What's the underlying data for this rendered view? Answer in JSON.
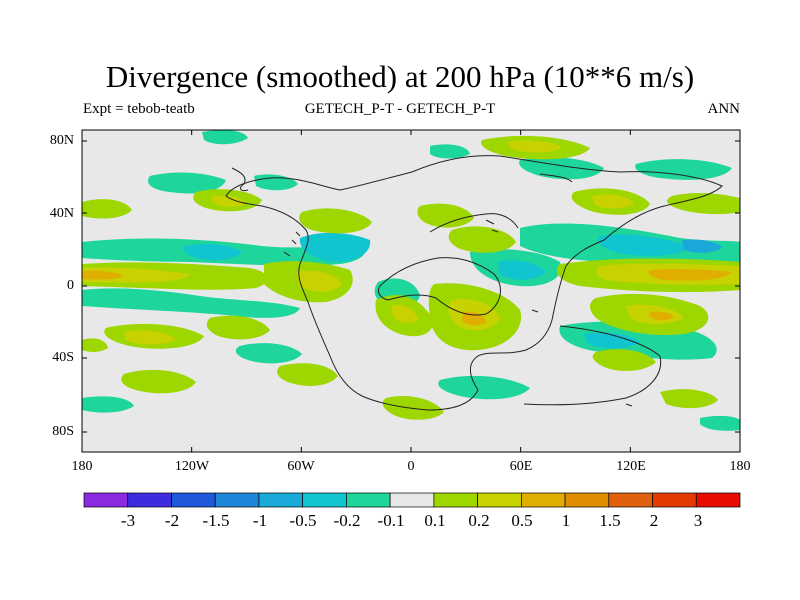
{
  "header": {
    "title": "Divergence (smoothed) at 200 hPa (10**6 m/s)",
    "left": "Expt = tebob-teatb",
    "center": "GETECH_P-T - GETECH_P-T",
    "right": "ANN"
  },
  "axes": {
    "y_ticks": [
      "80N",
      "40N",
      "0",
      "40S",
      "80S"
    ],
    "x_ticks": [
      "180",
      "120W",
      "60W",
      "0",
      "60E",
      "120E",
      "180"
    ]
  },
  "colorbar": {
    "labels": [
      "-3",
      "-2",
      "-1.5",
      "-1",
      "-0.5",
      "-0.2",
      "-0.1",
      "0.1",
      "0.2",
      "0.5",
      "1",
      "1.5",
      "2",
      "3"
    ],
    "colors": [
      "#8a2be2",
      "#3d2be0",
      "#1f58d8",
      "#1c86d8",
      "#1aa8d8",
      "#10c4d0",
      "#1ed69c",
      "#e8e8e8",
      "#9ed600",
      "#c8d200",
      "#e0ae00",
      "#e28c00",
      "#e06010",
      "#e43a00",
      "#e80c00"
    ]
  },
  "map": {
    "background": "#e8e8e8",
    "frame_color": "#000000",
    "coast_color": "#222222",
    "colors": {
      "neg_light": "#1ed69c",
      "neg_mid": "#10c4d0",
      "neg_strong": "#1aa8d8",
      "pos_light": "#9ed600",
      "pos_mid": "#c8d200",
      "pos_strong": "#e0ae00"
    }
  }
}
